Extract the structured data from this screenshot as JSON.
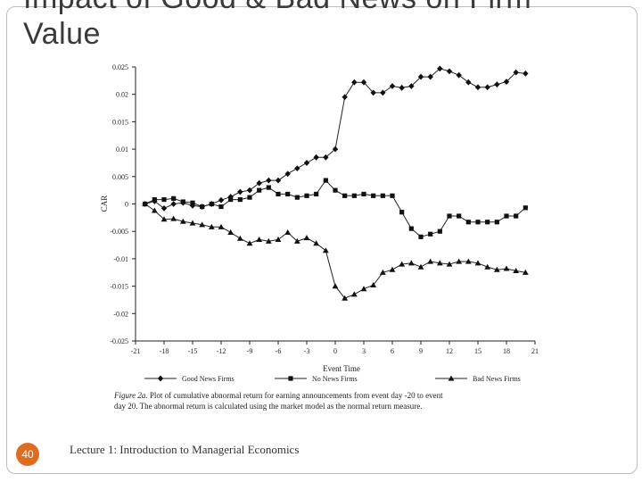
{
  "slide": {
    "title_line1": "Impact of Good & Bad News on Firm",
    "title_line2": "Value",
    "slide_number": "40",
    "footer_text": "Lecture 1: Introduction to Managerial Economics",
    "accent_color": "#e06c1f"
  },
  "chart_data": {
    "type": "line",
    "title": "",
    "xlabel": "Event Time",
    "ylabel": "CAR",
    "xlim": [
      -21,
      21
    ],
    "ylim": [
      -0.025,
      0.025
    ],
    "x_ticks": [
      -21,
      -18,
      -15,
      -12,
      -9,
      -6,
      -3,
      0,
      3,
      6,
      9,
      12,
      15,
      18,
      21
    ],
    "x_tick_labels": [
      "-21",
      "-18",
      "-15",
      "-12",
      "-9",
      "-6",
      "-3",
      "0",
      "3",
      "6",
      "9",
      "12",
      "15",
      "18",
      "21"
    ],
    "y_ticks": [
      0.025,
      0.02,
      0.015,
      0.01,
      0.005,
      0,
      -0.005,
      -0.01,
      -0.015,
      -0.02,
      -0.025
    ],
    "y_tick_labels": [
      "0.025",
      "0.02",
      "0.015",
      "0.01",
      "0.005",
      "0",
      "-0.005",
      "-0.01",
      "-0.015",
      "-0.02",
      "-0.025"
    ],
    "x": [
      -20,
      -19,
      -18,
      -17,
      -16,
      -15,
      -14,
      -13,
      -12,
      -11,
      -10,
      -9,
      -8,
      -7,
      -6,
      -5,
      -4,
      -3,
      -2,
      -1,
      0,
      1,
      2,
      3,
      4,
      5,
      6,
      7,
      8,
      9,
      10,
      11,
      12,
      13,
      14,
      15,
      16,
      17,
      18,
      19,
      20
    ],
    "series": [
      {
        "name": "Good News Firms",
        "marker": "diamond",
        "values": [
          0.0,
          0.0005,
          -0.0008,
          0.0,
          0.0002,
          -0.0003,
          -0.0005,
          0.0,
          0.0007,
          0.0013,
          0.0022,
          0.0025,
          0.0038,
          0.0043,
          0.0043,
          0.0055,
          0.0065,
          0.0075,
          0.0085,
          0.0085,
          0.01,
          0.0195,
          0.0222,
          0.0222,
          0.0203,
          0.0203,
          0.0215,
          0.0212,
          0.0215,
          0.0232,
          0.0232,
          0.0247,
          0.0242,
          0.0235,
          0.0222,
          0.0213,
          0.0213,
          0.0218,
          0.0223,
          0.024,
          0.0238
        ]
      },
      {
        "name": "No News Firms",
        "marker": "square",
        "values": [
          0.0,
          0.0008,
          0.0008,
          0.001,
          0.0004,
          0.0002,
          -0.0005,
          0.0,
          -0.0005,
          0.0008,
          0.0008,
          0.0012,
          0.0025,
          0.003,
          0.0018,
          0.0018,
          0.0012,
          0.0015,
          0.0018,
          0.0043,
          0.0025,
          0.0015,
          0.0015,
          0.0018,
          0.0015,
          0.0015,
          0.0015,
          -0.0015,
          -0.0045,
          -0.006,
          -0.0055,
          -0.005,
          -0.0022,
          -0.0022,
          -0.0033,
          -0.0033,
          -0.0033,
          -0.0033,
          -0.0022,
          -0.0022,
          -0.0007
        ]
      },
      {
        "name": "Bad News Firms",
        "marker": "triangle",
        "values": [
          0.0,
          -0.0012,
          -0.0028,
          -0.0027,
          -0.0032,
          -0.0035,
          -0.0038,
          -0.0042,
          -0.0042,
          -0.0052,
          -0.0063,
          -0.0072,
          -0.0065,
          -0.0068,
          -0.0065,
          -0.0052,
          -0.0068,
          -0.0062,
          -0.0072,
          -0.0085,
          -0.015,
          -0.0172,
          -0.0165,
          -0.0155,
          -0.0148,
          -0.0125,
          -0.012,
          -0.011,
          -0.0108,
          -0.0115,
          -0.0105,
          -0.0108,
          -0.011,
          -0.0105,
          -0.0105,
          -0.0108,
          -0.0115,
          -0.012,
          -0.0118,
          -0.0122,
          -0.0125
        ]
      }
    ],
    "legend": [
      "Good News Firms",
      "No News Firms",
      "Bad News Firms"
    ],
    "legend_position": "bottom",
    "caption_label": "Figure 2a.",
    "caption_line1": "Plot of cumulative abnormal return for earning announcements from event day -20 to event",
    "caption_line2": "day 20. The abnormal return is calculated using the market model as the normal return measure."
  }
}
